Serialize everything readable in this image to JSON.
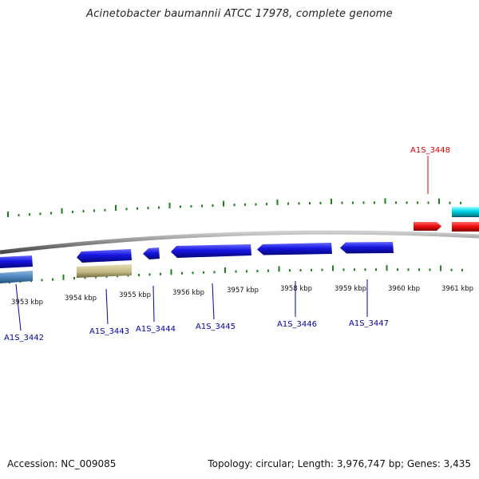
{
  "title": "Acinetobacter baumannii ATCC 17978, complete genome",
  "footer": {
    "accession": "Accession: NC_009085",
    "stats": "Topology: circular; Length: 3,976,747 bp; Genes: 3,435"
  },
  "colors": {
    "backbone": "#8a8a8a",
    "forward_gene": "#ee1111",
    "reverse_gene": "#1515e0",
    "rna_gene": "#00d8e8",
    "cds_steelblue": "#4d86bf",
    "cds_khaki": "#c4bc84",
    "tick": "#118811",
    "label_reverse": "#0000b0",
    "label_forward": "#dd0000"
  },
  "scale": {
    "labels": [
      {
        "text": "3953 kbp",
        "kbp": 3953
      },
      {
        "text": "3954 kbp",
        "kbp": 3954
      },
      {
        "text": "3955 kbp",
        "kbp": 3955
      },
      {
        "text": "3956 kbp",
        "kbp": 3956
      },
      {
        "text": "3957 kbp",
        "kbp": 3957
      },
      {
        "text": "3958 kbp",
        "kbp": 3958
      },
      {
        "text": "3959 kbp",
        "kbp": 3959
      },
      {
        "text": "3960 kbp",
        "kbp": 3960
      },
      {
        "text": "3961 kbp",
        "kbp": 3961
      }
    ]
  },
  "genes": [
    {
      "label": "A1S_3442",
      "strand": "reverse"
    },
    {
      "label": "A1S_3443",
      "strand": "reverse"
    },
    {
      "label": "A1S_3444",
      "strand": "reverse"
    },
    {
      "label": "A1S_3445",
      "strand": "reverse"
    },
    {
      "label": "A1S_3446",
      "strand": "reverse"
    },
    {
      "label": "A1S_3447",
      "strand": "reverse"
    },
    {
      "label": "A1S_3448",
      "strand": "forward"
    }
  ]
}
